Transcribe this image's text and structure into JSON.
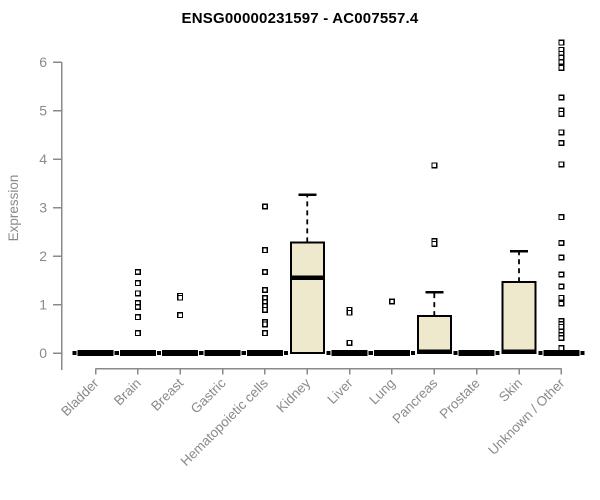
{
  "chart_data": {
    "type": "boxplot",
    "title": "ENSG00000231597 - AC007557.4",
    "ylabel": "Expression",
    "xlabel": "",
    "ylim": [
      0,
      6.5
    ],
    "yticks": [
      0,
      1,
      2,
      3,
      4,
      5,
      6
    ],
    "grid": false,
    "legend": "none",
    "axis_color": "#8a8a8a",
    "box_fill": "#eee8cd",
    "box_border": "#000000",
    "outlier_fill": "#ffffff",
    "categories": [
      "Bladder",
      "Brain",
      "Breast",
      "Gastric",
      "Hematopoietic cells",
      "Kidney",
      "Liver",
      "Lung",
      "Pancreas",
      "Prostate",
      "Skin",
      "Unknown / Other"
    ],
    "boxes": [
      {
        "category": "Bladder",
        "q1": 0,
        "median": 0,
        "q3": 0,
        "whisker_low": 0,
        "whisker_high": 0,
        "outliers": []
      },
      {
        "category": "Brain",
        "q1": 0,
        "median": 0,
        "q3": 0,
        "whisker_low": 0,
        "whisker_high": 0,
        "outliers": [
          1.67,
          1.44,
          1.23,
          1.03,
          0.95,
          0.74,
          0.41
        ]
      },
      {
        "category": "Breast",
        "q1": 0,
        "median": 0,
        "q3": 0,
        "whisker_low": 0,
        "whisker_high": 0,
        "outliers": [
          1.18,
          1.14,
          0.78
        ]
      },
      {
        "category": "Gastric",
        "q1": 0,
        "median": 0,
        "q3": 0,
        "whisker_low": 0,
        "whisker_high": 0,
        "outliers": []
      },
      {
        "category": "Hematopoietic cells",
        "q1": 0,
        "median": 0,
        "q3": 0,
        "whisker_low": 0,
        "whisker_high": 0,
        "outliers": [
          3.02,
          2.12,
          1.67,
          1.3,
          1.13,
          1.05,
          0.97,
          0.89,
          0.64,
          0.59,
          0.41
        ]
      },
      {
        "category": "Kidney",
        "q1": 0,
        "median": 1.55,
        "q3": 2.28,
        "whisker_low": 0,
        "whisker_high": 3.26,
        "outliers": []
      },
      {
        "category": "Liver",
        "q1": 0,
        "median": 0,
        "q3": 0,
        "whisker_low": 0,
        "whisker_high": 0,
        "outliers": [
          0.89,
          0.83,
          0.21
        ]
      },
      {
        "category": "Lung",
        "q1": 0,
        "median": 0,
        "q3": 0,
        "whisker_low": 0,
        "whisker_high": 0,
        "outliers": [
          1.06
        ]
      },
      {
        "category": "Pancreas",
        "q1": 0,
        "median": 0.03,
        "q3": 0.76,
        "whisker_low": 0,
        "whisker_high": 1.25,
        "outliers": [
          3.87,
          2.31,
          2.25
        ]
      },
      {
        "category": "Prostate",
        "q1": 0,
        "median": 0,
        "q3": 0,
        "whisker_low": 0,
        "whisker_high": 0,
        "outliers": []
      },
      {
        "category": "Skin",
        "q1": 0,
        "median": 0.03,
        "q3": 1.46,
        "whisker_low": 0,
        "whisker_high": 2.1,
        "outliers": []
      },
      {
        "category": "Unknown / Other",
        "q1": 0,
        "median": 0,
        "q3": 0,
        "whisker_low": 0,
        "whisker_high": 0,
        "outliers": [
          6.4,
          6.25,
          6.17,
          6.09,
          6.0,
          5.88,
          5.27,
          5.0,
          4.93,
          4.55,
          4.33,
          3.89,
          2.8,
          2.27,
          1.97,
          1.62,
          1.37,
          1.14,
          1.02,
          0.66,
          0.6,
          0.54,
          0.44,
          0.37,
          0.31,
          0.1
        ]
      }
    ]
  }
}
